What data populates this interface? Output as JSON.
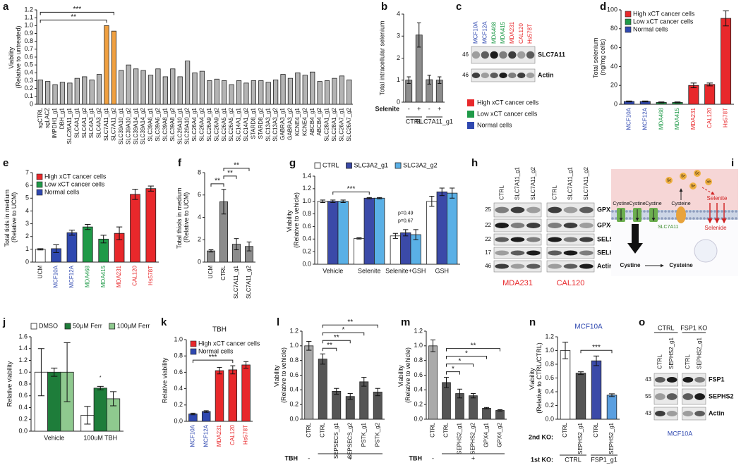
{
  "chart_data": [
    {
      "panel": "a",
      "type": "bar",
      "y_label": "Viability (Relative to untreated)",
      "rotate_labels": true,
      "categories": [
        "sgCTRL",
        "sgLACZ",
        "IMPDH1_g1",
        "DBH_g1",
        "SLC26A11_g1",
        "SLC4A1_g1",
        "SLC4A1_g2",
        "SLC4A3_g1",
        "SLC4A3_g2",
        "SLC7A11_g1",
        "SLC7A11_g2",
        "SLC39A10_g1",
        "SLC39A10_g2",
        "SLC39A14_g1",
        "SLC39A14_g2",
        "SLC39A6_g1",
        "SLC39A6_g2",
        "SLC39A8_g1",
        "SLC39A8_g2",
        "SLC26A10_g1",
        "SLC26A10_g2",
        "SLC26A4_g1",
        "SLC26A4_g2",
        "SLC26A9_g1",
        "SLC26A9_g2",
        "SLC26A5_g1",
        "SLC26A5_g2",
        "SLC14A1_g1",
        "SLC14A1_g2",
        "STARD8_g1",
        "STARD8_g2",
        "SLC13A3_g1",
        "SLC13A3_g2",
        "GABRA3_g1",
        "GABRA3_g2",
        "KCNE4_g1",
        "KCNE4_g2",
        "ABCB4_g1",
        "ABCB4_g2",
        "SLC28A1_g1",
        "SLC28A1_g2",
        "SLC26A7_g1",
        "SLC26A7_g2"
      ],
      "values": [
        0.31,
        0.29,
        0.25,
        0.28,
        0.27,
        0.33,
        0.35,
        0.31,
        0.38,
        1.0,
        0.93,
        0.43,
        0.5,
        0.45,
        0.43,
        0.37,
        0.45,
        0.35,
        0.45,
        0.35,
        0.55,
        0.4,
        0.42,
        0.3,
        0.32,
        0.3,
        0.25,
        0.3,
        0.27,
        0.3,
        0.3,
        0.28,
        0.31,
        0.38,
        0.33,
        0.4,
        0.37,
        0.41,
        0.29,
        0.3,
        0.33,
        0.36,
        0.31
      ],
      "colors": [
        "#b4b4b4",
        "#b4b4b4",
        "#b4b4b4",
        "#b4b4b4",
        "#b4b4b4",
        "#b4b4b4",
        "#b4b4b4",
        "#b4b4b4",
        "#b4b4b4",
        "#f0a040",
        "#f0a040",
        "#b4b4b4",
        "#b4b4b4",
        "#b4b4b4",
        "#b4b4b4",
        "#b4b4b4",
        "#b4b4b4",
        "#b4b4b4",
        "#b4b4b4",
        "#b4b4b4",
        "#b4b4b4",
        "#b4b4b4",
        "#b4b4b4",
        "#b4b4b4",
        "#b4b4b4",
        "#b4b4b4",
        "#b4b4b4",
        "#b4b4b4",
        "#b4b4b4",
        "#b4b4b4",
        "#b4b4b4",
        "#b4b4b4",
        "#b4b4b4",
        "#b4b4b4",
        "#b4b4b4",
        "#b4b4b4",
        "#b4b4b4",
        "#b4b4b4",
        "#b4b4b4",
        "#b4b4b4",
        "#b4b4b4",
        "#b4b4b4",
        "#b4b4b4"
      ],
      "ylim": [
        0,
        1.2
      ],
      "yticks": [
        0,
        0.1,
        0.2,
        0.3,
        0.4,
        0.5,
        0.6,
        0.7,
        0.8,
        0.9,
        {
          "value": 1,
          "label": "1.0"
        },
        1.1,
        1.2
      ],
      "annotations": [
        {
          "text": "**",
          "from": 0,
          "to": 9
        },
        {
          "text": "***",
          "from": 0,
          "to": 10
        }
      ]
    },
    {
      "panel": "b",
      "type": "bar",
      "y_label": "Total intracellular selenium",
      "category_label": "Selenite",
      "categories": [
        "-",
        "+",
        "-",
        "+"
      ],
      "values": [
        1.0,
        3.05,
        1.02,
        1.0
      ],
      "errors": [
        0.15,
        0.55,
        0.2,
        0.15
      ],
      "color": "#8c8c8c",
      "ylim": [
        0,
        4
      ],
      "yticks": [
        0,
        1,
        2,
        3,
        4
      ],
      "rows": [
        {
          "items": [
            {
              "text": "CTRL",
              "count": 2
            },
            {
              "text": "SLC7A11_g1",
              "count": 2
            }
          ]
        }
      ]
    },
    {
      "panel": "d",
      "type": "bar",
      "y_label": "Total selenium (ng/mg cells)",
      "rotate_labels": true,
      "categories": [
        "MCF10A",
        "MCF12A",
        "MDA468",
        "MDA415",
        "MDA231",
        "CAL120",
        "Hs578T"
      ],
      "label_colors": [
        "#2f48b0",
        "#2f48b0",
        "#1f9a48",
        "#1f9a48",
        "#e8282b",
        "#e8282b",
        "#e8282b"
      ],
      "values": [
        3,
        3,
        2,
        2,
        20,
        21,
        91
      ],
      "errors": [
        0.5,
        0.5,
        0.5,
        0.5,
        2.5,
        1.5,
        8
      ],
      "colors": [
        "#2f48b0",
        "#2f48b0",
        "#1f9a48",
        "#1f9a48",
        "#e8282b",
        "#e8282b",
        "#e8282b"
      ],
      "ylim": [
        0,
        100
      ],
      "yticks": [
        0,
        20,
        40,
        60,
        80,
        100
      ],
      "legend_loc": "upper left",
      "legend": [
        {
          "name": "High xCT cancer cells",
          "color": "#e8282b"
        },
        {
          "name": "Low xCT cancer cells",
          "color": "#1f9a48"
        },
        {
          "name": "Normal cells",
          "color": "#2f48b0"
        }
      ]
    },
    {
      "panel": "e",
      "type": "bar",
      "y_label": "Total tiols in medium (Relative to UCM)",
      "rotate_labels": true,
      "categories": [
        "UCM",
        "MCF10A",
        "MCF12A",
        "MDA468",
        "MDA415",
        "MDA231",
        "CAL120",
        "Hs578T"
      ],
      "label_colors": [
        "#111111",
        "#2f48b0",
        "#2f48b0",
        "#1f9a48",
        "#1f9a48",
        "#e8282b",
        "#e8282b",
        "#e8282b"
      ],
      "values": [
        1.0,
        1.05,
        2.3,
        2.75,
        1.8,
        2.25,
        5.3,
        5.75
      ],
      "errors": [
        0.05,
        0.3,
        0.2,
        0.2,
        0.3,
        0.5,
        0.4,
        0.2
      ],
      "colors": [
        "#ffffff",
        "#2f48b0",
        "#2f48b0",
        "#1f9a48",
        "#1f9a48",
        "#e8282b",
        "#e8282b",
        "#e8282b"
      ],
      "ylim": [
        0,
        7
      ],
      "yticks": [
        0,
        1,
        2,
        3,
        4,
        5,
        6,
        7
      ],
      "legend_loc": "upper left",
      "legend": [
        {
          "name": "High xCT cancer cells",
          "color": "#e8282b"
        },
        {
          "name": "Low xCT cancer cells",
          "color": "#1f9a48"
        },
        {
          "name": "Normal cells",
          "color": "#2f48b0"
        }
      ]
    },
    {
      "panel": "f",
      "type": "bar",
      "y_label": "Total thiols in medium (Relative to UCM)",
      "rotate_labels": true,
      "categories": [
        "UCM",
        "CTRL",
        "SLC7A11_g1",
        "SLC7A11_g2"
      ],
      "values": [
        1.0,
        5.4,
        1.6,
        1.4
      ],
      "errors": [
        0.1,
        1.1,
        0.5,
        0.4
      ],
      "color": "#8c8c8c",
      "ylim": [
        0,
        8
      ],
      "yticks": [
        0,
        2,
        4,
        6,
        8
      ],
      "annotations": [
        {
          "text": "**",
          "from": 0,
          "to": 1
        },
        {
          "text": "**",
          "from": 1,
          "to": 2
        },
        {
          "text": "**",
          "from": 1,
          "to": 3
        }
      ]
    },
    {
      "panel": "g",
      "type": "bar",
      "y_label": "Viability (Relative to vehicle)",
      "categories": [
        "Vehicle",
        "Selenite",
        "Selenite+GSH",
        "GSH"
      ],
      "series": [
        {
          "name": "CTRL",
          "color": "#ffffff",
          "values": [
            1.0,
            0.41,
            0.45,
            1.0
          ],
          "errors": [
            0.02,
            0.01,
            0.04,
            0.08
          ]
        },
        {
          "name": "SLC3A2_g1",
          "color": "#3b4aa8",
          "values": [
            1.0,
            1.05,
            0.5,
            1.15
          ],
          "errors": [
            0.02,
            0.01,
            0.05,
            0.06
          ]
        },
        {
          "name": "SLC3A2_g2",
          "color": "#5ab0e6",
          "values": [
            1.0,
            1.05,
            0.47,
            1.13
          ],
          "errors": [
            0.02,
            0.01,
            0.08,
            0.08
          ]
        }
      ],
      "ylim": [
        0,
        1.4
      ],
      "yticks": [
        {
          "value": 0,
          "label": "0.0"
        },
        0.2,
        0.4,
        0.6,
        0.8,
        {
          "value": 1,
          "label": "1.0"
        },
        1.2,
        1.4
      ],
      "legend_loc": "top",
      "annotations": [
        {
          "text": "***",
          "from": 0,
          "to": 1
        },
        {
          "text": "p=0.67",
          "from": 2,
          "to": 2
        },
        {
          "text": "p=0.49",
          "from": 2,
          "to": 2
        }
      ]
    },
    {
      "panel": "j",
      "type": "bar",
      "y_label": "Relative viability",
      "categories": [
        "Vehicle",
        "100uM TBH"
      ],
      "series": [
        {
          "name": "DMSO",
          "color": "#ffffff",
          "values": [
            1.0,
            0.27
          ],
          "errors": [
            0.4,
            0.15
          ]
        },
        {
          "name": "50µM Ferr",
          "color": "#1e7d3a",
          "values": [
            1.0,
            0.73
          ],
          "errors": [
            0.07,
            0.03
          ]
        },
        {
          "name": "100µM Ferr",
          "color": "#8fc98f",
          "values": [
            1.0,
            0.55
          ],
          "errors": [
            0.5,
            0.12
          ]
        }
      ],
      "ylim": [
        0,
        1.6
      ],
      "yticks": [
        {
          "value": 0,
          "label": "0.0"
        },
        0.2,
        0.4,
        0.6,
        0.8,
        {
          "value": 1,
          "label": "1.0"
        },
        1.2,
        1.4,
        1.6
      ],
      "legend_loc": "top",
      "annotations": [
        {
          "text": "*",
          "from": 1,
          "to": 1
        }
      ]
    },
    {
      "panel": "k",
      "type": "bar",
      "title": "TBH",
      "y_label": "Relative viability",
      "rotate_labels": true,
      "categories": [
        "MCF10A",
        "MCF12A",
        "MDA231",
        "CAL120",
        "Hs578T"
      ],
      "label_colors": [
        "#2f48b0",
        "#2f48b0",
        "#e8282b",
        "#e8282b",
        "#e8282b"
      ],
      "values": [
        0.09,
        0.12,
        0.62,
        0.63,
        0.69
      ],
      "errors": [
        0.01,
        0.01,
        0.04,
        0.05,
        0.04
      ],
      "colors": [
        "#2f48b0",
        "#2f48b0",
        "#e8282b",
        "#e8282b",
        "#e8282b"
      ],
      "ylim": [
        0,
        1
      ],
      "yticks": [
        {
          "value": 0,
          "label": "0.0"
        },
        0.2,
        0.4,
        0.6,
        0.8,
        {
          "value": 1,
          "label": "1.0"
        }
      ],
      "legend_loc": "upper left",
      "legend": [
        {
          "name": "High xCT cancer cells",
          "color": "#e8282b"
        },
        {
          "name": "Normal cells",
          "color": "#2f48b0"
        }
      ],
      "annotations": [
        {
          "text": "***",
          "from": 0,
          "to": 3
        }
      ]
    },
    {
      "panel": "l",
      "type": "bar",
      "y_label": "Viability (Relative to vehicle)",
      "rotate_labels": true,
      "categories": [
        "CTRL",
        "CTRL",
        "SEPSECS_g1",
        "SEPSECS_g2",
        "PSTK_g1",
        "PSTK_g2"
      ],
      "values": [
        1.0,
        0.82,
        0.38,
        0.31,
        0.51,
        0.37
      ],
      "errors": [
        0.06,
        0.07,
        0.04,
        0.04,
        0.06,
        0.05
      ],
      "colors": [
        "#aaaaaa",
        "#555555",
        "#555555",
        "#555555",
        "#555555",
        "#555555"
      ],
      "ylim": [
        0,
        1.2
      ],
      "yticks": [
        {
          "value": 0,
          "label": "0.0"
        },
        0.2,
        0.4,
        0.6,
        0.8,
        {
          "value": 1,
          "label": "1.0"
        },
        1.2
      ],
      "rows": [
        {
          "label": "TBH",
          "items": [
            {
              "text": "-",
              "count": 1
            },
            {
              "text": "+",
              "count": 5
            }
          ]
        }
      ],
      "annotations": [
        {
          "text": "**",
          "from": 1,
          "to": 2
        },
        {
          "text": "**",
          "from": 1,
          "to": 3
        },
        {
          "text": "*",
          "from": 1,
          "to": 4
        },
        {
          "text": "**",
          "from": 1,
          "to": 5
        }
      ]
    },
    {
      "panel": "m",
      "type": "bar",
      "y_label": "Viability (Relative to vehicle)",
      "rotate_labels": true,
      "categories": [
        "CTRL",
        "CTRL",
        "SEPHS2_g1",
        "SEPHS2_g2",
        "GPX4_g1",
        "GPX4_g2"
      ],
      "values": [
        1.0,
        0.5,
        0.35,
        0.32,
        0.15,
        0.12
      ],
      "errors": [
        0.08,
        0.07,
        0.06,
        0.03,
        0.01,
        0.01
      ],
      "colors": [
        "#aaaaaa",
        "#555555",
        "#555555",
        "#555555",
        "#555555",
        "#555555"
      ],
      "ylim": [
        0,
        1.2
      ],
      "yticks": [
        {
          "value": 0,
          "label": "0.0"
        },
        0.2,
        0.4,
        0.6,
        0.8,
        {
          "value": 1,
          "label": "1.0"
        },
        1.2
      ],
      "rows": [
        {
          "label": "TBH",
          "items": [
            {
              "text": "-",
              "count": 1
            },
            {
              "text": "+",
              "count": 5
            }
          ]
        }
      ],
      "annotations": [
        {
          "text": "*",
          "from": 1,
          "to": 2
        },
        {
          "text": "*",
          "from": 1,
          "to": 3
        },
        {
          "text": "*",
          "from": 1,
          "to": 4
        },
        {
          "text": "**",
          "from": 1,
          "to": 5
        }
      ]
    },
    {
      "panel": "n",
      "type": "bar",
      "title": "MCF10A",
      "title_color": "#2f48b0",
      "y_label": "Viability (Relative to CTRL/CTRL)",
      "rotate_labels": true,
      "category_label": "2nd KO:",
      "categories": [
        "CTRL",
        "SEPHS2_g1",
        "CTRL",
        "SEPHS2_g1"
      ],
      "values": [
        1.0,
        0.67,
        0.85,
        0.35
      ],
      "errors": [
        0.12,
        0.02,
        0.07,
        0.02
      ],
      "colors": [
        "#ffffff",
        "#555555",
        "#3b4aa8",
        "#5a9fe0"
      ],
      "ylim": [
        0,
        1.2
      ],
      "yticks": [
        {
          "value": 0,
          "label": "0.0"
        },
        0.2,
        0.4,
        0.6,
        0.8,
        {
          "value": 1,
          "label": "1.0"
        },
        1.2
      ],
      "rows": [
        {
          "label": "1st KO:",
          "items": [
            {
              "text": "CTRL",
              "count": 2
            },
            {
              "text": "FSP1_g1",
              "count": 2
            }
          ]
        }
      ],
      "annotations": [
        {
          "text": "***",
          "from": 1,
          "to": 3
        }
      ]
    }
  ],
  "blots": [
    {
      "panel": "c",
      "lanes": [
        "MCF10A",
        "MCF12A",
        "MDA468",
        "MDA415",
        "MDA231",
        "CAL120",
        "Hs578T"
      ],
      "lane_colors": [
        "#2f48b0",
        "#2f48b0",
        "#1f9a48",
        "#1f9a48",
        "#e8282b",
        "#e8282b",
        "#e8282b"
      ],
      "rows": [
        {
          "marker": "46",
          "band": "SLC7A11"
        },
        {
          "marker": "46",
          "band": "Actin"
        }
      ],
      "legend": [
        {
          "name": "High xCT cancer cells",
          "color": "#e8282b"
        },
        {
          "name": "Low xCT cancer cells",
          "color": "#1f9a48"
        },
        {
          "name": "Normal cells",
          "color": "#2f48b0"
        }
      ]
    },
    {
      "panel": "h",
      "group_position": "bottom",
      "lane_groups": [
        {
          "name": "MDA231",
          "color": "#e8282b",
          "lanes": [
            "CTRL",
            "SLC7A11_g1",
            "SLC7A11_g2"
          ]
        },
        {
          "name": "CAL120",
          "color": "#e8282b",
          "lanes": [
            "CTRL",
            "SLC7A11_g1",
            "SLC7A11_g2"
          ]
        }
      ],
      "rows": [
        {
          "marker": "25",
          "band": "GPX1"
        },
        {
          "marker": "22",
          "band": "GPX4"
        },
        {
          "marker": "22",
          "band": "SELS"
        },
        {
          "marker": "17",
          "band": "SELH"
        },
        {
          "marker": "46",
          "band": "Actin"
        }
      ]
    },
    {
      "panel": "o",
      "group_position": "top",
      "lane_groups": [
        {
          "name": "CTRL",
          "lanes": [
            "CTRL",
            "SEPHS2_g1"
          ]
        },
        {
          "name": "FSP1 KO",
          "lanes": [
            "CTRL",
            "SEPHS2_g1"
          ]
        }
      ],
      "rows": [
        {
          "marker": "43",
          "band": "FSP1"
        },
        {
          "marker": "55",
          "band": "SEPHS2"
        },
        {
          "marker": "43",
          "band": "Actin"
        }
      ],
      "footer": "MCF10A",
      "footer_color": "#2f48b0"
    }
  ],
  "diagram": {
    "panel": "i",
    "cystine_labels": [
      "Cystine",
      "Cystine",
      "Cystine"
    ],
    "transporter": "SLC7A11",
    "cysteine": "Cysteine",
    "se": "Se",
    "selenite": "Selenite",
    "selenide": "Selenide",
    "bottom": [
      "Cystine",
      "Cysteine"
    ]
  }
}
